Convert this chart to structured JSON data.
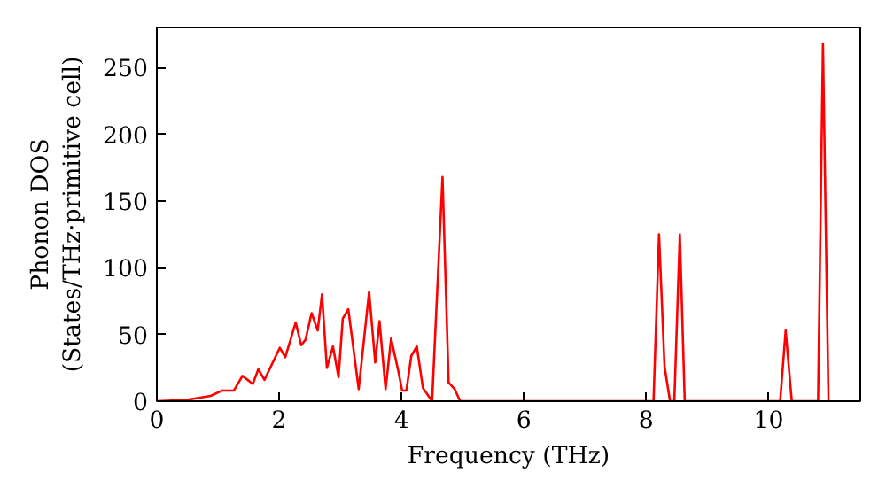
{
  "chart_data": {
    "type": "line",
    "xlabel": "Frequency (THz)",
    "ylabel": "Phonon DOS\n(States/THz·primitive cell)",
    "xlim": [
      0,
      11.5
    ],
    "ylim": [
      0,
      280
    ],
    "xticks": [
      0,
      2,
      4,
      6,
      8,
      10
    ],
    "yticks": [
      0,
      50,
      100,
      150,
      200,
      250
    ],
    "grid": false,
    "series": [
      {
        "color": "#ff0000",
        "x": [
          0,
          0.49,
          0.88,
          1.07,
          1.26,
          1.4,
          1.57,
          1.66,
          1.76,
          2.01,
          2.1,
          2.27,
          2.36,
          2.43,
          2.53,
          2.63,
          2.7,
          2.78,
          2.88,
          2.97,
          3.04,
          3.13,
          3.3,
          3.47,
          3.57,
          3.64,
          3.74,
          3.83,
          3.95,
          4.01,
          4.08,
          4.16,
          4.25,
          4.35,
          4.5,
          4.67,
          4.77,
          4.87,
          4.96,
          8.12,
          8.21,
          8.3,
          8.39,
          8.46,
          8.55,
          8.63,
          10.19,
          10.28,
          10.38,
          10.81,
          10.89,
          10.98
        ],
        "values": [
          0,
          1,
          4,
          8,
          8,
          19,
          13,
          24,
          16,
          40,
          33,
          59,
          42,
          46,
          66,
          53,
          80,
          25,
          41,
          18,
          62,
          69,
          9,
          82,
          29,
          60,
          9,
          47,
          22,
          8,
          8,
          34,
          41,
          10,
          0,
          168,
          14,
          9,
          0,
          0,
          125,
          26,
          0,
          0,
          125,
          0,
          0,
          53,
          0,
          0,
          268,
          0
        ]
      }
    ]
  }
}
